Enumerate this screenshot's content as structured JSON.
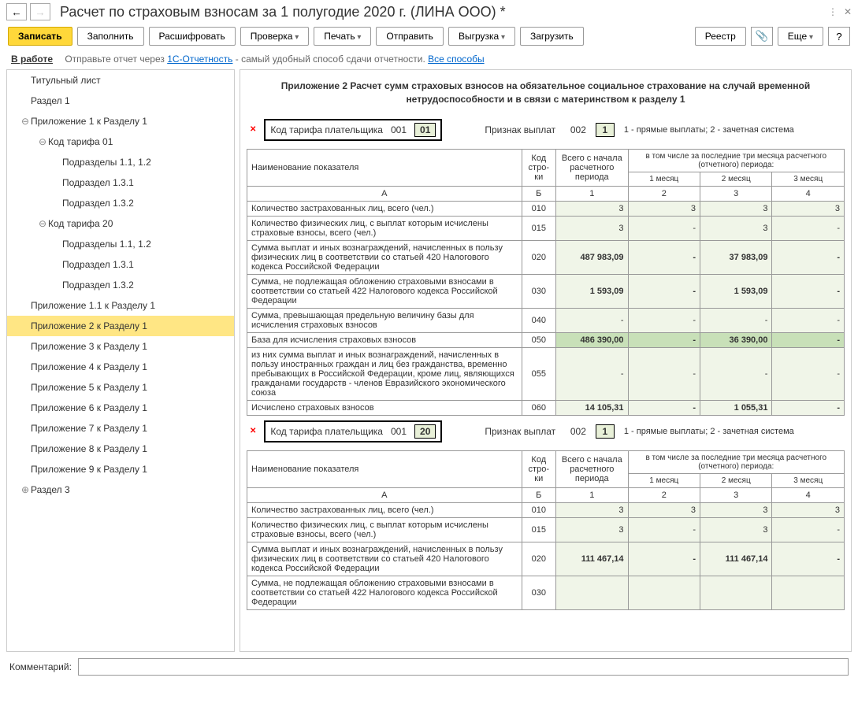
{
  "title": "Расчет по страховым взносам за 1 полугодие 2020 г. (ЛИНА ООО) *",
  "toolbar": {
    "zapisat": "Записать",
    "zapolnit": "Заполнить",
    "rasshifrovat": "Расшифровать",
    "proverka": "Проверка",
    "pechat": "Печать",
    "otpravit": "Отправить",
    "vygruzka": "Выгрузка",
    "zagruzit": "Загрузить",
    "reestr": "Реестр",
    "esche": "Еще"
  },
  "info": {
    "status": "В работе",
    "text1": "Отправьте отчет через ",
    "link1": "1С-Отчетность",
    "text2": " - самый удобный способ сдачи отчетности. ",
    "link2": "Все способы"
  },
  "tree": [
    {
      "label": "Титульный лист",
      "level": 1
    },
    {
      "label": "Раздел 1",
      "level": 1
    },
    {
      "label": "Приложение 1 к Разделу 1",
      "level": 1,
      "exp": "⊖"
    },
    {
      "label": "Код тарифа 01",
      "level": 2,
      "exp": "⊖"
    },
    {
      "label": "Подразделы 1.1, 1.2",
      "level": 3
    },
    {
      "label": "Подраздел 1.3.1",
      "level": 3
    },
    {
      "label": "Подраздел 1.3.2",
      "level": 3
    },
    {
      "label": "Код тарифа 20",
      "level": 2,
      "exp": "⊖"
    },
    {
      "label": "Подразделы 1.1, 1.2",
      "level": 3
    },
    {
      "label": "Подраздел 1.3.1",
      "level": 3
    },
    {
      "label": "Подраздел 1.3.2",
      "level": 3
    },
    {
      "label": "Приложение 1.1 к Разделу 1",
      "level": 1
    },
    {
      "label": "Приложение 2 к Разделу 1",
      "level": 1,
      "selected": true
    },
    {
      "label": "Приложение 3 к Разделу 1",
      "level": 1
    },
    {
      "label": "Приложение 4 к Разделу 1",
      "level": 1
    },
    {
      "label": "Приложение 5 к Разделу 1",
      "level": 1
    },
    {
      "label": "Приложение 6 к Разделу 1",
      "level": 1
    },
    {
      "label": "Приложение 7 к Разделу 1",
      "level": 1
    },
    {
      "label": "Приложение 8 к Разделу 1",
      "level": 1
    },
    {
      "label": "Приложение 9 к Разделу 1",
      "level": 1
    },
    {
      "label": "Раздел 3",
      "level": 1,
      "exp": "⊕"
    }
  ],
  "section_title": "Приложение 2 Расчет сумм страховых взносов на обязательное социальное страхование на случай временной нетрудоспособности и в связи с материнством к разделу 1",
  "tariff": {
    "label": "Код тарифа плательщика",
    "code_prefix": "001",
    "sign_label": "Признак выплат",
    "sign_prefix": "002",
    "sign_note": "1 - прямые выплаты; 2 - зачетная система",
    "sign_value": "1"
  },
  "headers": {
    "name": "Наименование показателя",
    "code": "Код стро­ки",
    "total": "Всего с начала расчетного периода",
    "last3": "в том числе за последние три месяца расчетного (отчетного) периода:",
    "m1": "1 месяц",
    "m2": "2 месяц",
    "m3": "3 месяц",
    "a": "А",
    "b": "Б",
    "c1": "1",
    "c2": "2",
    "c3": "3",
    "c4": "4"
  },
  "blocks": [
    {
      "tariff_code": "01",
      "rows": [
        {
          "name": "Количество застрахованных лиц, всего (чел.)",
          "code": "010",
          "v": [
            "3",
            "3",
            "3",
            "3"
          ]
        },
        {
          "name": "Количество физических лиц, с выплат которым исчислены страховые взносы, всего (чел.)",
          "code": "015",
          "v": [
            "3",
            "-",
            "3",
            "-"
          ]
        },
        {
          "name": "Сумма выплат и иных вознаграждений, начисленных в пользу физических лиц в соответствии со статьей 420 Налогового кодекса Российской Федерации",
          "code": "020",
          "v": [
            "487 983,09",
            "-",
            "37 983,09",
            "-"
          ],
          "bold": true
        },
        {
          "name": "Сумма, не подлежащая обложению страховыми взносами в соответствии со статьей 422 Налогового кодекса Российской Федерации",
          "code": "030",
          "v": [
            "1 593,09",
            "-",
            "1 593,09",
            "-"
          ],
          "bold": true
        },
        {
          "name": "Сумма, превышающая предельную величину базы для исчисления страховых взносов",
          "code": "040",
          "v": [
            "-",
            "-",
            "-",
            "-"
          ]
        },
        {
          "name": "База для исчисления страховых взносов",
          "code": "050",
          "v": [
            "486 390,00",
            "-",
            "36 390,00",
            "-"
          ],
          "highlight": true
        },
        {
          "name": "из них сумма выплат и иных вознаграждений, начисленных в пользу иностранных граждан и лиц без гражданства, временно пребывающих в Российской Федерации, кроме лиц, являющихся гражданами государств - членов Евразийского экономического союза",
          "code": "055",
          "v": [
            "-",
            "-",
            "-",
            "-"
          ]
        },
        {
          "name": "Исчислено страховых взносов",
          "code": "060",
          "v": [
            "14 105,31",
            "-",
            "1 055,31",
            "-"
          ],
          "bold": true
        }
      ]
    },
    {
      "tariff_code": "20",
      "rows": [
        {
          "name": "Количество застрахованных лиц, всего (чел.)",
          "code": "010",
          "v": [
            "3",
            "3",
            "3",
            "3"
          ]
        },
        {
          "name": "Количество физических лиц, с выплат которым исчислены страховые взносы, всего (чел.)",
          "code": "015",
          "v": [
            "3",
            "-",
            "3",
            "-"
          ]
        },
        {
          "name": "Сумма выплат и иных вознаграждений, начисленных в пользу физических лиц в соответствии со статьей 420 Налогового кодекса Российской Федерации",
          "code": "020",
          "v": [
            "111 467,14",
            "-",
            "111 467,14",
            "-"
          ],
          "bold": true
        },
        {
          "name": "Сумма, не подлежащая обложению страховыми взносами в соответствии со статьей 422 Налогового кодекса Российской Федерации",
          "code": "030",
          "v": [
            "",
            "",
            "",
            ""
          ]
        }
      ]
    }
  ],
  "comment_label": "Комментарий:"
}
